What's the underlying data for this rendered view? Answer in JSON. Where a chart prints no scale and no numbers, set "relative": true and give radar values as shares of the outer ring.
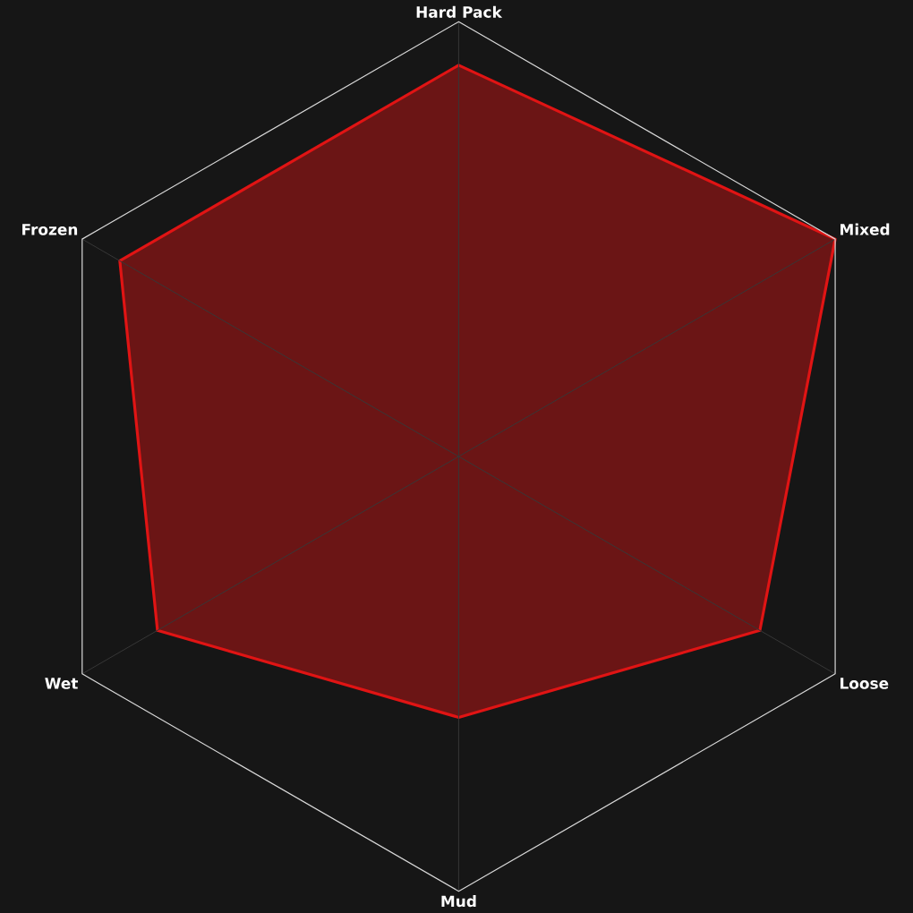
{
  "chart_data": {
    "type": "radar",
    "relative": true,
    "categories": [
      "Hard Pack",
      "Mixed",
      "Loose",
      "Mud",
      "Wet",
      "Frozen"
    ],
    "series": [
      {
        "color": "#e01414",
        "values": [
          0.9,
          1,
          0.8,
          0.6,
          0.8,
          0.9
        ]
      }
    ]
  }
}
